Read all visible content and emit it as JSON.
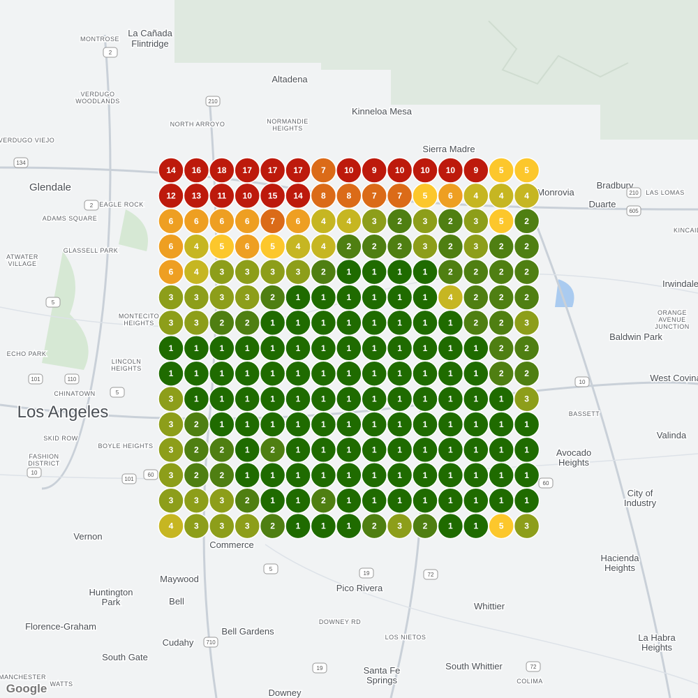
{
  "map": {
    "places": [
      [
        "Montrose"
      ],
      [
        "La Cañada",
        "Flintridge"
      ],
      [
        "Altadena"
      ],
      [
        "Verdugo",
        "Woodlands"
      ],
      [
        "North Arroyo"
      ],
      [
        "Normandie",
        "Heights"
      ],
      [
        "Kinneloa Mesa"
      ],
      [
        "Verdugo Viejo"
      ],
      [
        "Sierra Madre"
      ],
      [
        "Glendale"
      ],
      [
        "Eagle Rock"
      ],
      [
        "Adams Square"
      ],
      [
        "Glassell Park"
      ],
      [
        "Atwater",
        "Village"
      ],
      [
        "Bradbury"
      ],
      [
        "Las Lomas"
      ],
      [
        "Duarte"
      ],
      [
        "Kincaid"
      ],
      [
        "Monrovia"
      ],
      [
        "Irwindale"
      ],
      [
        "Orange",
        "Avenue",
        "Junction"
      ],
      [
        "Baldwin Park"
      ],
      [
        "Montecito",
        "Heights"
      ],
      [
        "Lincoln",
        "Heights"
      ],
      [
        "Echo Park"
      ],
      [
        "Chinatown"
      ],
      [
        "Los Angeles"
      ],
      [
        "Skid Row"
      ],
      [
        "Boyle Heights"
      ],
      [
        "Fashion",
        "District"
      ],
      [
        "West Covina"
      ],
      [
        "Bassett"
      ],
      [
        "Valinda"
      ],
      [
        "Avocado",
        "Heights"
      ],
      [
        "City of",
        "Industry"
      ],
      [
        "Vernon"
      ],
      [
        "Commerce"
      ],
      [
        "Maywood"
      ],
      [
        "Huntington",
        "Park"
      ],
      [
        "Bell"
      ],
      [
        "Pico Rivera"
      ],
      [
        "Whittier"
      ],
      [
        "Hacienda",
        "Heights"
      ],
      [
        "Florence-Graham"
      ],
      [
        "Cudahy"
      ],
      [
        "Bell Gardens"
      ],
      [
        "South Gate"
      ],
      [
        "Downey Rd"
      ],
      [
        "Los Nietos"
      ],
      [
        "Santa Fe",
        "Springs"
      ],
      [
        "South Whittier"
      ],
      [
        "La Habra",
        "Heights"
      ],
      [
        "Downey"
      ],
      [
        "Manchester"
      ],
      [
        "Watts"
      ],
      [
        "Colima"
      ],
      [
        "Google"
      ]
    ],
    "shields": [
      "2",
      "210",
      "134",
      "2",
      "5",
      "101",
      "110",
      "5",
      "10",
      "60",
      "101",
      "605",
      "210",
      "10",
      "60",
      "5",
      "19",
      "72",
      "710",
      "19",
      "72"
    ],
    "grid": {
      "rows": [
        [
          14,
          16,
          18,
          17,
          17,
          17,
          7,
          10,
          9,
          10,
          10,
          10,
          9,
          5,
          5
        ],
        [
          12,
          13,
          11,
          10,
          15,
          14,
          8,
          8,
          7,
          7,
          5,
          6,
          4,
          4,
          4
        ],
        [
          6,
          6,
          6,
          6,
          7,
          6,
          4,
          4,
          3,
          2,
          3,
          2,
          3,
          5,
          2
        ],
        [
          6,
          4,
          5,
          6,
          5,
          4,
          4,
          2,
          2,
          2,
          3,
          2,
          3,
          2,
          2
        ],
        [
          6,
          4,
          3,
          3,
          3,
          3,
          2,
          1,
          1,
          1,
          1,
          2,
          2,
          2,
          2
        ],
        [
          3,
          3,
          3,
          3,
          2,
          1,
          1,
          1,
          1,
          1,
          1,
          4,
          2,
          2,
          2
        ],
        [
          3,
          3,
          2,
          2,
          1,
          1,
          1,
          1,
          1,
          1,
          1,
          1,
          2,
          2,
          3
        ],
        [
          1,
          1,
          1,
          1,
          1,
          1,
          1,
          1,
          1,
          1,
          1,
          1,
          1,
          2,
          2
        ],
        [
          1,
          1,
          1,
          1,
          1,
          1,
          1,
          1,
          1,
          1,
          1,
          1,
          1,
          2,
          2
        ],
        [
          3,
          1,
          1,
          1,
          1,
          1,
          1,
          1,
          1,
          1,
          1,
          1,
          1,
          1,
          3
        ],
        [
          3,
          2,
          1,
          1,
          1,
          1,
          1,
          1,
          1,
          1,
          1,
          1,
          1,
          1,
          1
        ],
        [
          3,
          2,
          2,
          1,
          2,
          1,
          1,
          1,
          1,
          1,
          1,
          1,
          1,
          1,
          1
        ],
        [
          3,
          2,
          2,
          1,
          1,
          1,
          1,
          1,
          1,
          1,
          1,
          1,
          1,
          1,
          1
        ],
        [
          3,
          3,
          3,
          2,
          1,
          1,
          2,
          1,
          1,
          1,
          1,
          1,
          1,
          1,
          1
        ],
        [
          4,
          3,
          3,
          3,
          2,
          1,
          1,
          1,
          2,
          3,
          2,
          1,
          1,
          5,
          3
        ]
      ]
    }
  }
}
